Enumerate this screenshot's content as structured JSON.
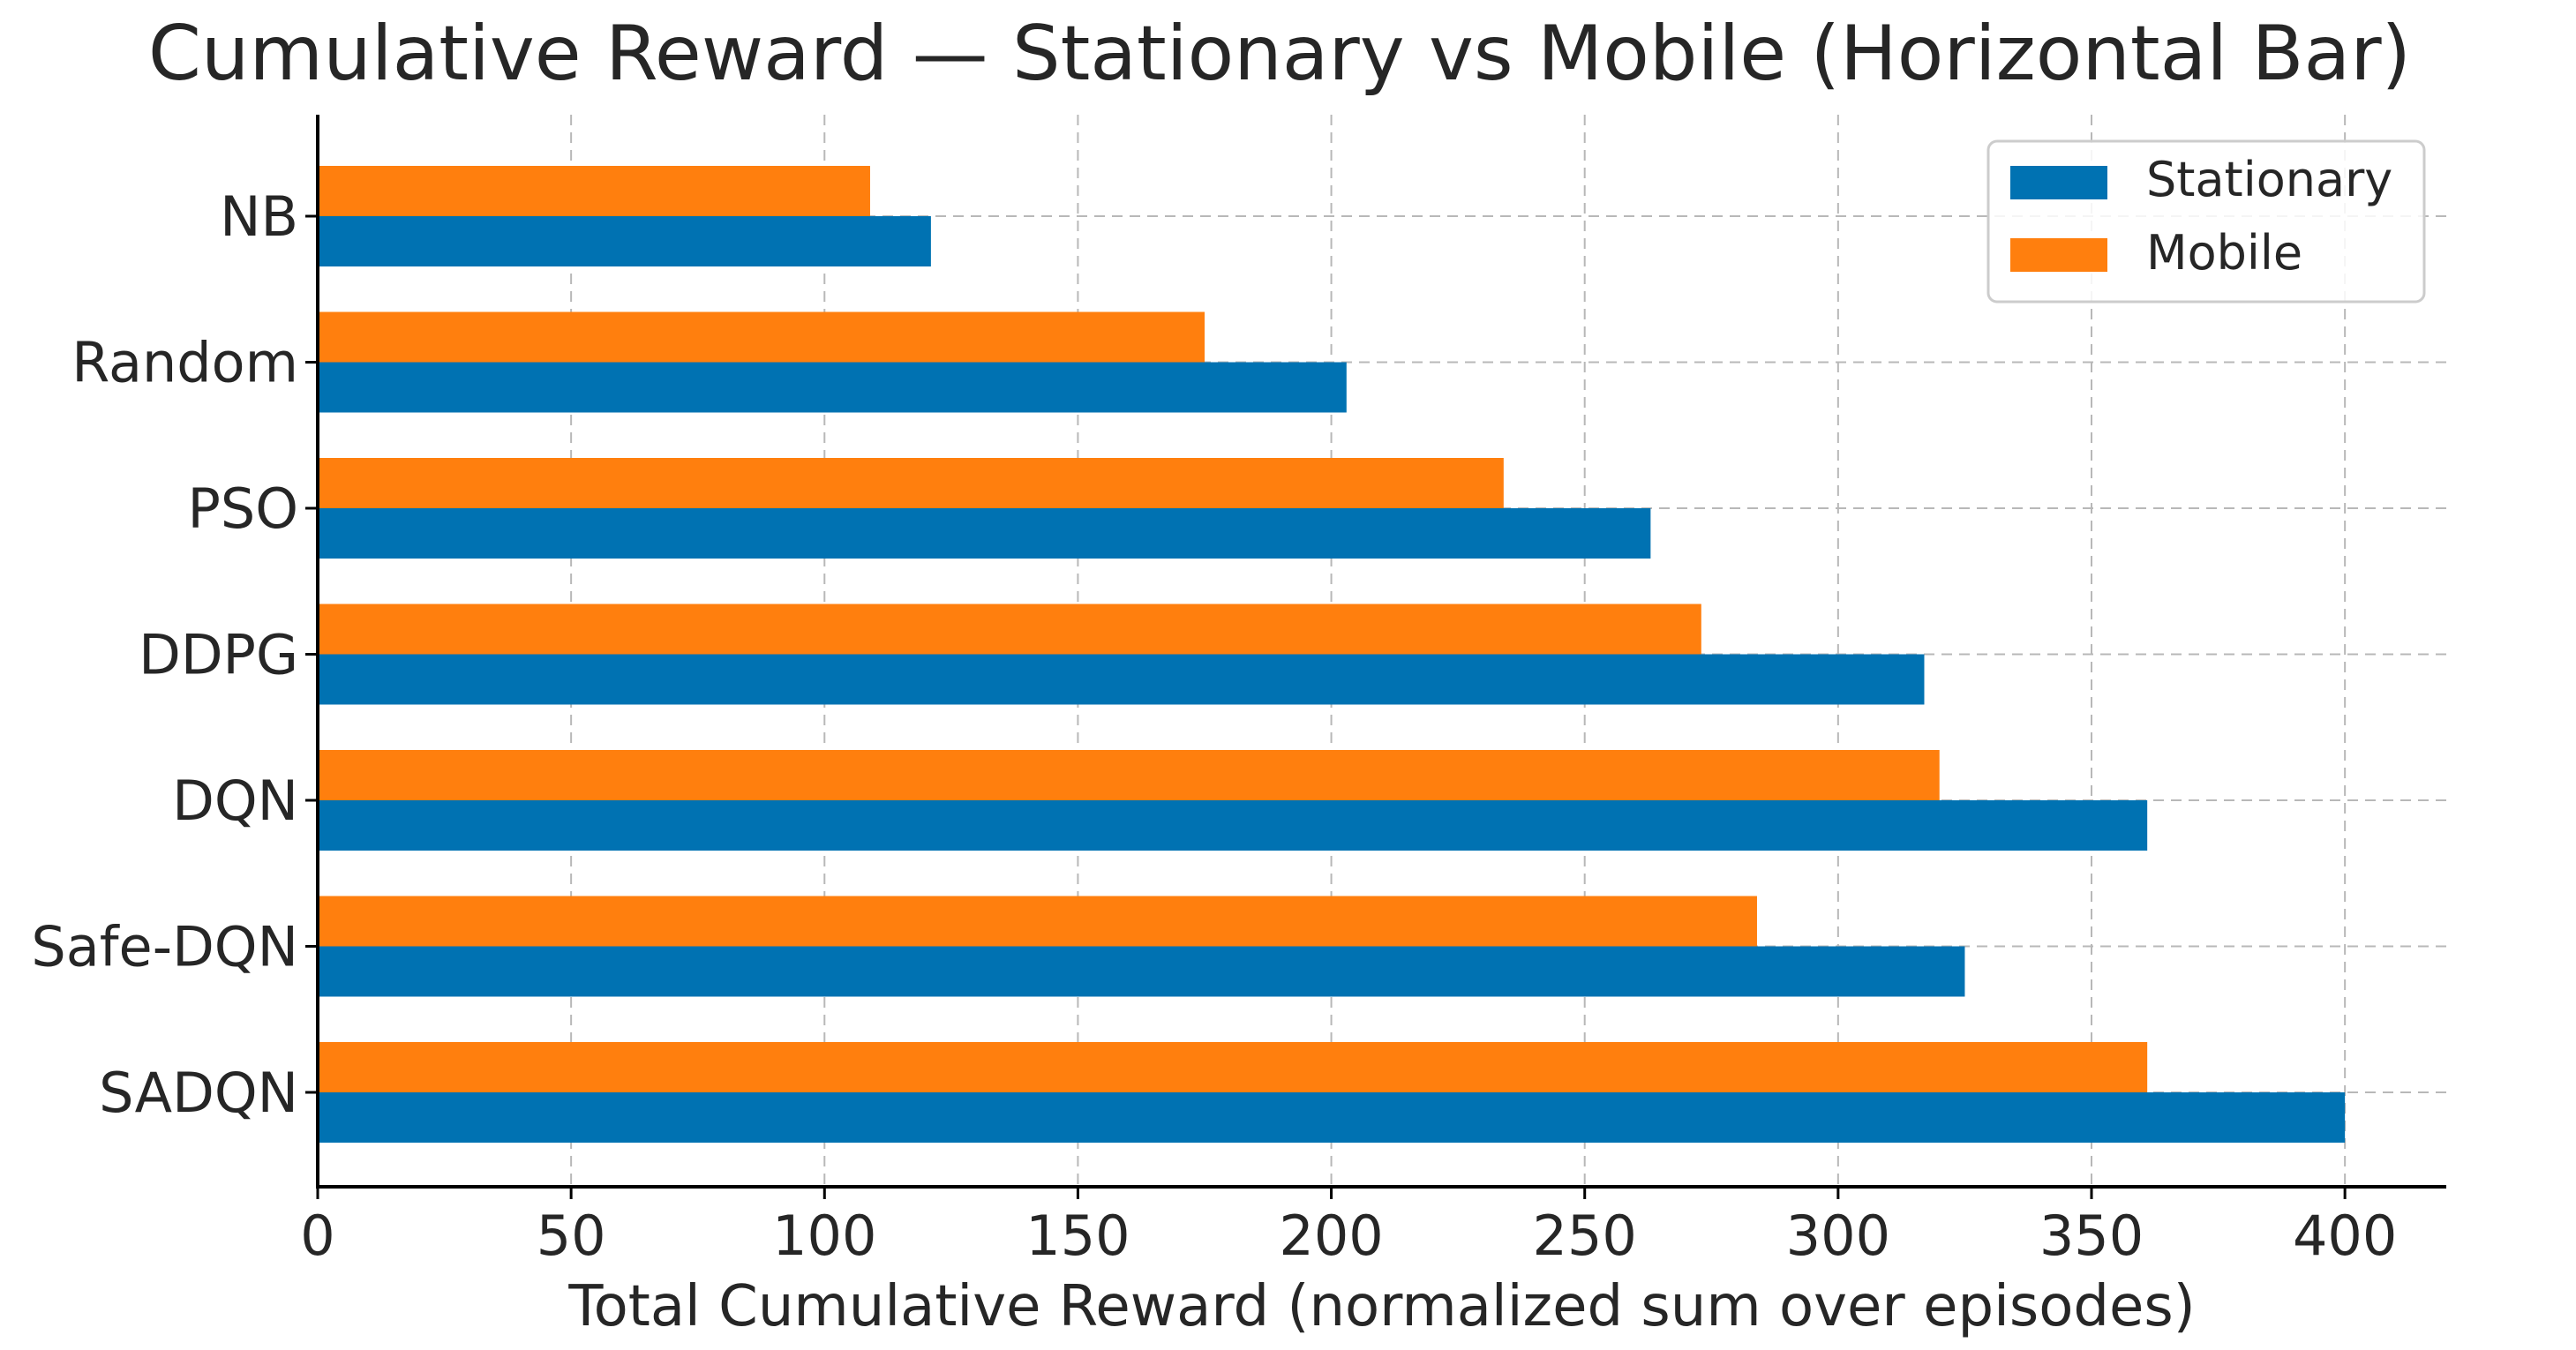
{
  "chart_data": {
    "type": "bar",
    "orientation": "horizontal",
    "title": "Cumulative Reward — Stationary vs Mobile (Horizontal Bar)",
    "xlabel": "Total Cumulative Reward (normalized sum over episodes)",
    "ylabel": "",
    "categories": [
      "NB",
      "Random",
      "PSO",
      "DDPG",
      "DQN",
      "Safe-DQN",
      "SADQN"
    ],
    "series": [
      {
        "name": "Stationary",
        "color": "#0072b2",
        "values": [
          121,
          203,
          263,
          317,
          361,
          325,
          400
        ]
      },
      {
        "name": "Mobile",
        "color": "#ff7f0e",
        "values": [
          109,
          175,
          234,
          273,
          320,
          284,
          361
        ]
      }
    ],
    "xlim": [
      0,
      420
    ],
    "xticks": [
      0,
      50,
      100,
      150,
      200,
      250,
      300,
      350,
      400
    ],
    "grid": true,
    "grid_style": "dashed",
    "legend_position": "top-right"
  }
}
